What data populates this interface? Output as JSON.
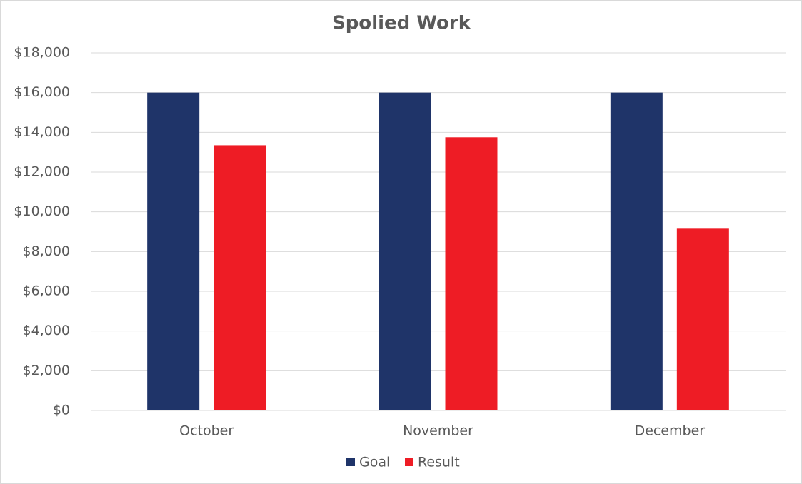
{
  "chart_data": {
    "type": "bar",
    "title": "Spolied Work",
    "categories": [
      "October",
      "November",
      "December"
    ],
    "series": [
      {
        "name": "Goal",
        "color": "#1f3469",
        "values": [
          16000,
          16000,
          16000
        ]
      },
      {
        "name": "Result",
        "color": "#ee1c25",
        "values": [
          13350,
          13750,
          9150
        ]
      }
    ],
    "ylim": [
      0,
      18000
    ],
    "yticks": [
      {
        "value": 0,
        "label": "$0"
      },
      {
        "value": 2000,
        "label": "$2,000"
      },
      {
        "value": 4000,
        "label": "$4,000"
      },
      {
        "value": 6000,
        "label": "$6,000"
      },
      {
        "value": 8000,
        "label": "$8,000"
      },
      {
        "value": 10000,
        "label": "$10,000"
      },
      {
        "value": 12000,
        "label": "$12,000"
      },
      {
        "value": 14000,
        "label": "$14,000"
      },
      {
        "value": 16000,
        "label": "$16,000"
      },
      {
        "value": 18000,
        "label": "$18,000"
      }
    ],
    "grid": true,
    "legend": "bottom"
  }
}
